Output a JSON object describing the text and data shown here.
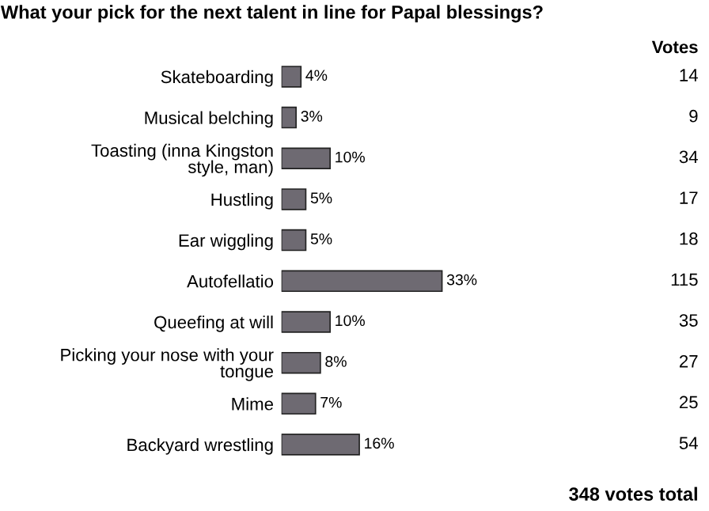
{
  "chart_data": {
    "type": "bar",
    "orientation": "horizontal",
    "title": "What your pick for the next talent in line for Papal blessings?",
    "categories": [
      "Skateboarding",
      "Musical belching",
      "Toasting (inna Kingston\nstyle, man)",
      "Hustling",
      "Ear wiggling",
      "Autofellatio",
      "Queefing at will",
      "Picking your nose with your\ntongue",
      "Mime",
      "Backyard wrestling"
    ],
    "values": [
      4,
      3,
      10,
      5,
      5,
      33,
      10,
      8,
      7,
      16
    ],
    "value_labels": [
      "4%",
      "3%",
      "10%",
      "5%",
      "5%",
      "33%",
      "10%",
      "8%",
      "7%",
      "16%"
    ],
    "color": "#6e6a72",
    "tick_labels": "y",
    "annotations": [
      "Votes",
      "348 votes total",
      "14",
      "9",
      "34",
      "17",
      "18",
      "115",
      "35",
      "27",
      "25",
      "54"
    ]
  }
}
